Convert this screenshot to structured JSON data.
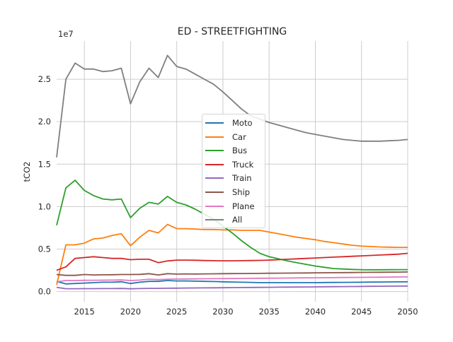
{
  "chart_data": {
    "type": "line",
    "title": "ED - STREETFIGHTING",
    "xlabel": "",
    "ylabel": "tCO2",
    "y_offset_label": "1e7",
    "xlim": [
      2012,
      2050
    ],
    "ylim": [
      -1200000,
      29500000
    ],
    "x_ticks": [
      2015,
      2020,
      2025,
      2030,
      2035,
      2040,
      2045,
      2050
    ],
    "x_tick_labels": [
      "2015",
      "2020",
      "2025",
      "2030",
      "2035",
      "2040",
      "2045",
      "2050"
    ],
    "y_ticks": [
      0,
      5000000,
      10000000,
      15000000,
      20000000,
      25000000
    ],
    "y_tick_labels": [
      "0.0",
      "0.5",
      "1.0",
      "1.5",
      "2.0",
      "2.5"
    ],
    "grid": true,
    "legend_position": "center",
    "x": [
      2012,
      2013,
      2014,
      2015,
      2016,
      2017,
      2018,
      2019,
      2020,
      2021,
      2022,
      2023,
      2024,
      2025,
      2026,
      2027,
      2028,
      2029,
      2030,
      2031,
      2032,
      2033,
      2034,
      2035,
      2036,
      2037,
      2038,
      2039,
      2040,
      2041,
      2042,
      2043,
      2044,
      2045,
      2046,
      2047,
      2048,
      2049,
      2050
    ],
    "series": [
      {
        "name": "Moto",
        "color": "#1f77b4",
        "values": [
          1200000,
          900000,
          950000,
          1000000,
          1050000,
          1100000,
          1100000,
          1150000,
          950000,
          1100000,
          1200000,
          1200000,
          1300000,
          1250000,
          1250000,
          1220000,
          1200000,
          1180000,
          1150000,
          1120000,
          1100000,
          1080000,
          1050000,
          1050000,
          1050000,
          1050000,
          1050000,
          1050000,
          1050000,
          1060000,
          1070000,
          1080000,
          1090000,
          1100000,
          1110000,
          1120000,
          1130000,
          1140000,
          1150000
        ]
      },
      {
        "name": "Car",
        "color": "#ff7f0e",
        "values": [
          800000,
          5500000,
          5500000,
          5700000,
          6200000,
          6300000,
          6600000,
          6800000,
          5400000,
          6400000,
          7200000,
          6900000,
          7900000,
          7400000,
          7400000,
          7350000,
          7300000,
          7300000,
          7250000,
          7250000,
          7200000,
          7200000,
          7200000,
          7000000,
          6800000,
          6600000,
          6400000,
          6250000,
          6100000,
          5900000,
          5750000,
          5600000,
          5450000,
          5350000,
          5300000,
          5250000,
          5220000,
          5200000,
          5200000
        ]
      },
      {
        "name": "Bus",
        "color": "#2ca02c",
        "values": [
          7800000,
          12200000,
          13100000,
          11900000,
          11300000,
          10900000,
          10800000,
          10900000,
          8700000,
          9800000,
          10500000,
          10300000,
          11200000,
          10500000,
          10200000,
          9700000,
          9100000,
          8500000,
          7700000,
          6900000,
          6000000,
          5200000,
          4500000,
          4100000,
          3850000,
          3600000,
          3400000,
          3200000,
          3000000,
          2850000,
          2700000,
          2650000,
          2600000,
          2570000,
          2560000,
          2560000,
          2570000,
          2580000,
          2580000
        ]
      },
      {
        "name": "Truck",
        "color": "#d62728",
        "values": [
          2500000,
          2900000,
          3900000,
          4000000,
          4100000,
          4000000,
          3900000,
          3900000,
          3750000,
          3800000,
          3800000,
          3400000,
          3600000,
          3700000,
          3700000,
          3680000,
          3650000,
          3630000,
          3620000,
          3620000,
          3630000,
          3650000,
          3670000,
          3700000,
          3750000,
          3800000,
          3850000,
          3900000,
          3950000,
          4000000,
          4050000,
          4100000,
          4150000,
          4200000,
          4250000,
          4300000,
          4350000,
          4400000,
          4500000
        ]
      },
      {
        "name": "Train",
        "color": "#9467bd",
        "values": [
          500000,
          330000,
          330000,
          340000,
          340000,
          350000,
          350000,
          360000,
          320000,
          350000,
          370000,
          370000,
          390000,
          400000,
          410000,
          420000,
          430000,
          440000,
          450000,
          460000,
          470000,
          480000,
          490000,
          500000,
          510000,
          520000,
          530000,
          540000,
          550000,
          560000,
          570000,
          580000,
          590000,
          600000,
          610000,
          620000,
          630000,
          640000,
          650000
        ]
      },
      {
        "name": "Ship",
        "color": "#8c564b",
        "values": [
          2000000,
          1900000,
          1900000,
          2000000,
          1950000,
          1970000,
          1980000,
          2000000,
          2000000,
          2020000,
          2100000,
          1950000,
          2100000,
          2050000,
          2080000,
          2060000,
          2080000,
          2090000,
          2100000,
          2110000,
          2120000,
          2130000,
          2140000,
          2150000,
          2160000,
          2170000,
          2180000,
          2190000,
          2200000,
          2210000,
          2220000,
          2230000,
          2240000,
          2250000,
          2260000,
          2270000,
          2280000,
          2290000,
          2300000
        ]
      },
      {
        "name": "Plane",
        "color": "#e377c2",
        "values": [
          1150000,
          1300000,
          1300000,
          1320000,
          1330000,
          1340000,
          1350000,
          1360000,
          1300000,
          1350000,
          1450000,
          1400000,
          1450000,
          1470000,
          1480000,
          1490000,
          1500000,
          1510000,
          1520000,
          1530000,
          1540000,
          1550000,
          1560000,
          1570000,
          1580000,
          1590000,
          1600000,
          1610000,
          1620000,
          1630000,
          1640000,
          1650000,
          1660000,
          1670000,
          1680000,
          1690000,
          1700000,
          1710000,
          1720000
        ]
      },
      {
        "name": "All",
        "color": "#7f7f7f",
        "values": [
          15800000,
          25000000,
          26900000,
          26200000,
          26200000,
          25900000,
          26000000,
          26300000,
          22100000,
          24700000,
          26300000,
          25200000,
          27800000,
          26500000,
          26200000,
          25600000,
          25000000,
          24400000,
          23500000,
          22500000,
          21500000,
          20700000,
          20300000,
          19900000,
          19600000,
          19300000,
          19000000,
          18700000,
          18500000,
          18300000,
          18100000,
          17900000,
          17800000,
          17700000,
          17700000,
          17700000,
          17750000,
          17800000,
          17900000
        ]
      }
    ]
  }
}
